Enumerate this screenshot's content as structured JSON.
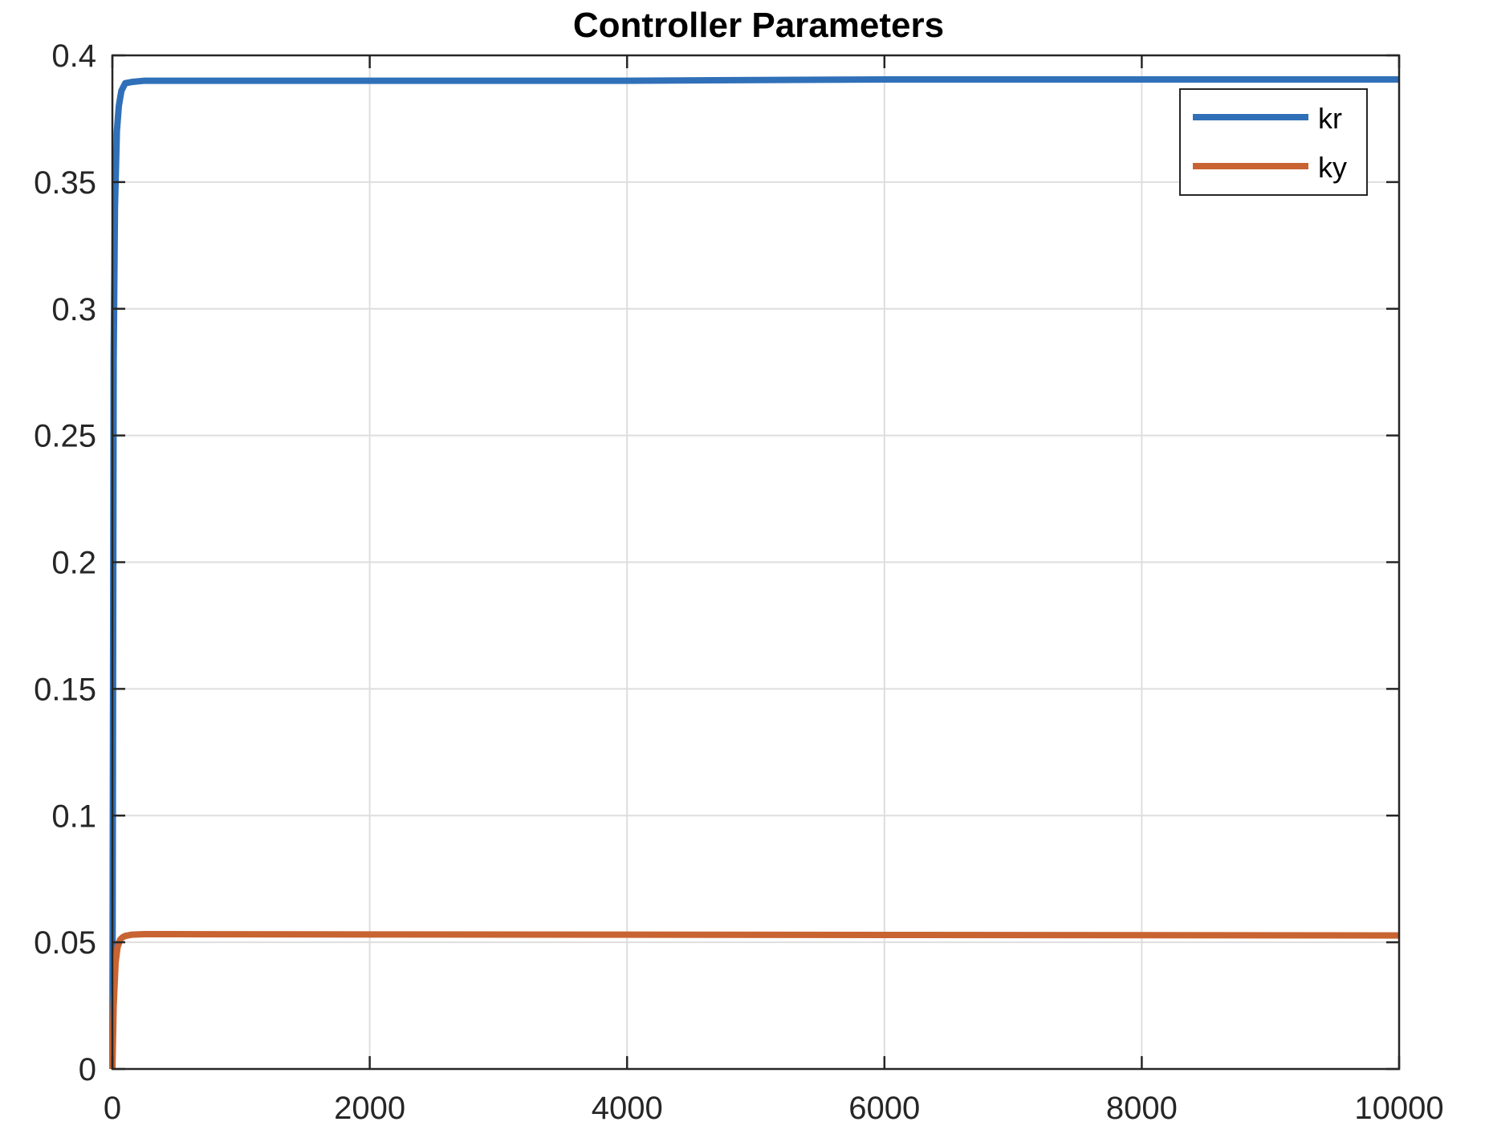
{
  "chart_data": {
    "type": "line",
    "title": "Controller Parameters",
    "xlabel": "",
    "ylabel": "",
    "xlim": [
      0,
      10000
    ],
    "ylim": [
      0,
      0.4
    ],
    "xticks": [
      "0",
      "2000",
      "4000",
      "6000",
      "8000",
      "10000"
    ],
    "yticks": [
      "0",
      "0.05",
      "0.1",
      "0.15",
      "0.2",
      "0.25",
      "0.3",
      "0.35",
      "0.4"
    ],
    "grid": true,
    "legend_position": "top-right",
    "series": [
      {
        "name": "kr",
        "color": "#3070b8",
        "x": [
          0,
          10,
          20,
          35,
          50,
          70,
          100,
          150,
          250,
          400,
          1000,
          2000,
          4000,
          6000,
          8000,
          10000
        ],
        "y": [
          0,
          0.28,
          0.34,
          0.37,
          0.38,
          0.386,
          0.389,
          0.3895,
          0.39,
          0.39,
          0.39,
          0.39,
          0.39,
          0.3905,
          0.3905,
          0.3905
        ]
      },
      {
        "name": "ky",
        "color": "#c86432",
        "x": [
          0,
          10,
          25,
          40,
          60,
          80,
          100,
          150,
          250,
          500,
          2000,
          4000,
          6000,
          8000,
          10000
        ],
        "y": [
          0,
          0.025,
          0.042,
          0.048,
          0.051,
          0.052,
          0.0525,
          0.053,
          0.0532,
          0.0532,
          0.0531,
          0.053,
          0.0529,
          0.0528,
          0.0527
        ]
      }
    ]
  }
}
